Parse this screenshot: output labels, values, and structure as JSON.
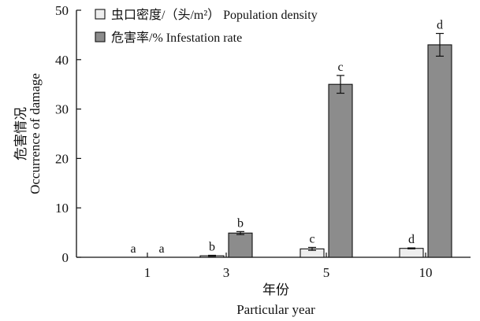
{
  "chart_data": {
    "type": "bar",
    "categories": [
      "1",
      "3",
      "5",
      "10"
    ],
    "series": [
      {
        "name": "虫口密度/（头/m²） Population density",
        "values": [
          0,
          0.3,
          1.7,
          1.8
        ],
        "errors": [
          0,
          0.1,
          0.3,
          0.1
        ],
        "labels": [
          "a",
          "b",
          "c",
          "d"
        ],
        "color": "#eeeeee"
      },
      {
        "name": "危害率/% Infestation rate",
        "values": [
          0,
          4.9,
          35.0,
          43.0
        ],
        "errors": [
          0,
          0.3,
          1.8,
          2.3
        ],
        "labels": [
          "a",
          "b",
          "c",
          "d"
        ],
        "color": "#8c8c8c"
      }
    ],
    "xlabel_cn": "年份",
    "xlabel_en": "Particular year",
    "ylabel_cn": "危害情况",
    "ylabel_en": "Occurrence of damage",
    "ylim": [
      0,
      50
    ],
    "yticks": [
      0,
      10,
      20,
      30,
      40,
      50
    ],
    "legend_position": "top-left",
    "grid": false
  }
}
